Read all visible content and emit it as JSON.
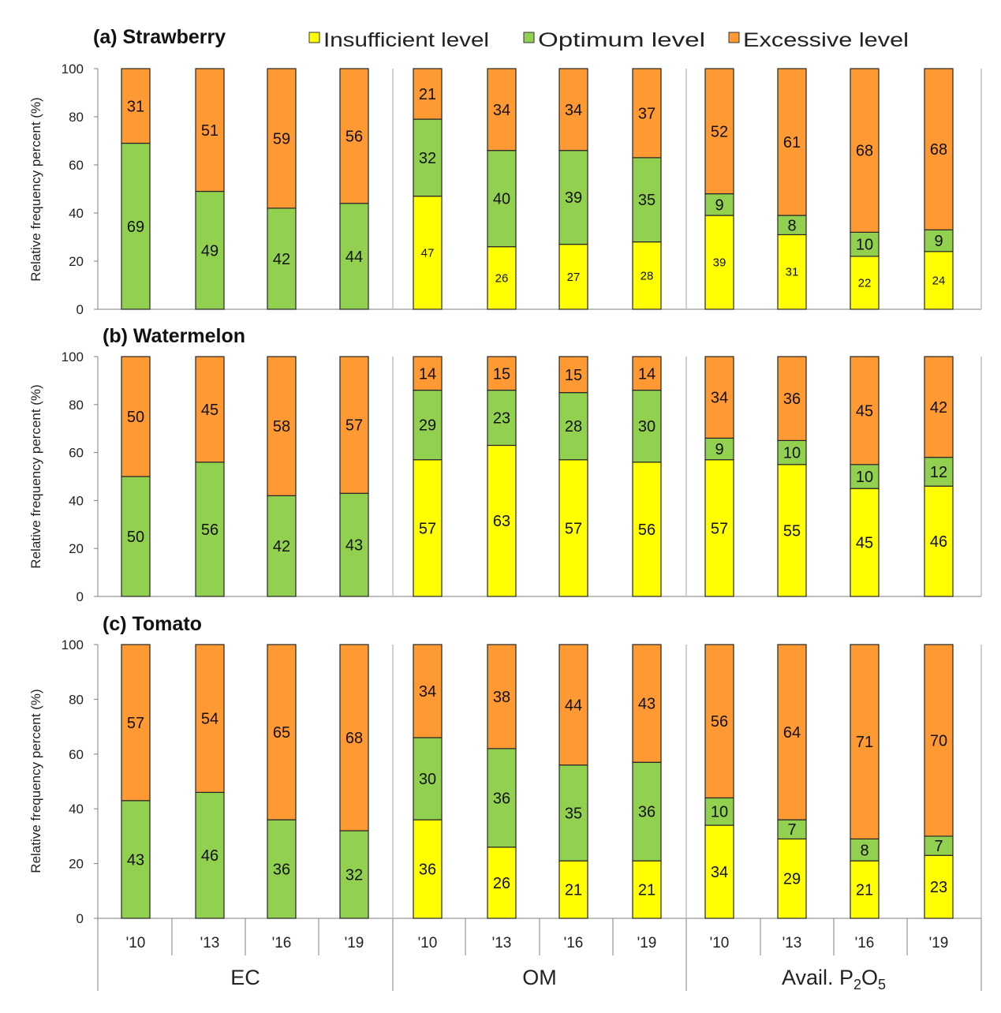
{
  "legend": [
    {
      "key": "insufficient",
      "label": "Insufficient level",
      "color": "#ffff00"
    },
    {
      "key": "optimum",
      "label": "Optimum level",
      "color": "#92d050"
    },
    {
      "key": "excessive",
      "label": "Excessive level",
      "color": "#ff9933"
    }
  ],
  "yaxis": {
    "label": "Relative frequency percent (%)",
    "ticks": [
      0,
      20,
      40,
      60,
      80,
      100
    ],
    "ylim": [
      0,
      100
    ]
  },
  "groups": [
    {
      "label": "EC",
      "years": [
        "'10",
        "'13",
        "'16",
        "'19"
      ]
    },
    {
      "label": "OM",
      "years": [
        "'10",
        "'13",
        "'16",
        "'19"
      ]
    },
    {
      "label": "Avail. P2O5",
      "label_main": "Avail. P",
      "label_sub1": "2",
      "label_mid": "O",
      "label_sub2": "5",
      "years": [
        "'10",
        "'13",
        "'16",
        "'19"
      ]
    }
  ],
  "chart_data": [
    {
      "type": "bar",
      "stacked": true,
      "title": "(a) Strawberry",
      "ylabel": "Relative frequency percent (%)",
      "ylim": [
        0,
        100
      ],
      "categories": [
        "EC '10",
        "EC '13",
        "EC '16",
        "EC '19",
        "OM '10",
        "OM '13",
        "OM '16",
        "OM '19",
        "P2O5 '10",
        "P2O5 '13",
        "P2O5 '16",
        "P2O5 '19"
      ],
      "series": [
        {
          "name": "Insufficient level",
          "values": [
            0,
            0,
            0,
            0,
            47,
            26,
            27,
            28,
            39,
            31,
            22,
            24
          ]
        },
        {
          "name": "Optimum level",
          "values": [
            69,
            49,
            42,
            44,
            32,
            40,
            39,
            35,
            9,
            8,
            10,
            9
          ]
        },
        {
          "name": "Excessive level",
          "values": [
            31,
            51,
            59,
            56,
            21,
            34,
            34,
            37,
            52,
            61,
            68,
            68
          ]
        }
      ]
    },
    {
      "type": "bar",
      "stacked": true,
      "title": "(b) Watermelon",
      "ylabel": "Relative frequency percent  (%)",
      "ylim": [
        0,
        100
      ],
      "categories": [
        "EC '10",
        "EC '13",
        "EC '16",
        "EC '19",
        "OM '10",
        "OM '13",
        "OM '16",
        "OM '19",
        "P2O5 '10",
        "P2O5 '13",
        "P2O5 '16",
        "P2O5 '19"
      ],
      "series": [
        {
          "name": "Insufficient level",
          "values": [
            0,
            0,
            0,
            0,
            57,
            63,
            57,
            56,
            57,
            55,
            45,
            46
          ]
        },
        {
          "name": "Optimum level",
          "values": [
            50,
            56,
            42,
            43,
            29,
            23,
            28,
            30,
            9,
            10,
            10,
            12
          ]
        },
        {
          "name": "Excessive level",
          "values": [
            50,
            45,
            58,
            57,
            14,
            15,
            15,
            14,
            34,
            36,
            45,
            42
          ]
        }
      ]
    },
    {
      "type": "bar",
      "stacked": true,
      "title": "(c) Tomato",
      "ylabel": "Relative frequency percent  (%)",
      "ylim": [
        0,
        100
      ],
      "categories": [
        "EC '10",
        "EC '13",
        "EC '16",
        "EC '19",
        "OM '10",
        "OM '13",
        "OM '16",
        "OM '19",
        "P2O5 '10",
        "P2O5 '13",
        "P2O5 '16",
        "P2O5 '19"
      ],
      "series": [
        {
          "name": "Insufficient level",
          "values": [
            0,
            0,
            0,
            0,
            36,
            26,
            21,
            21,
            34,
            29,
            21,
            23
          ]
        },
        {
          "name": "Optimum level",
          "values": [
            43,
            46,
            36,
            32,
            30,
            36,
            35,
            36,
            10,
            7,
            8,
            7
          ]
        },
        {
          "name": "Excessive level",
          "values": [
            57,
            54,
            65,
            68,
            34,
            38,
            44,
            43,
            56,
            64,
            71,
            70
          ]
        }
      ]
    }
  ]
}
